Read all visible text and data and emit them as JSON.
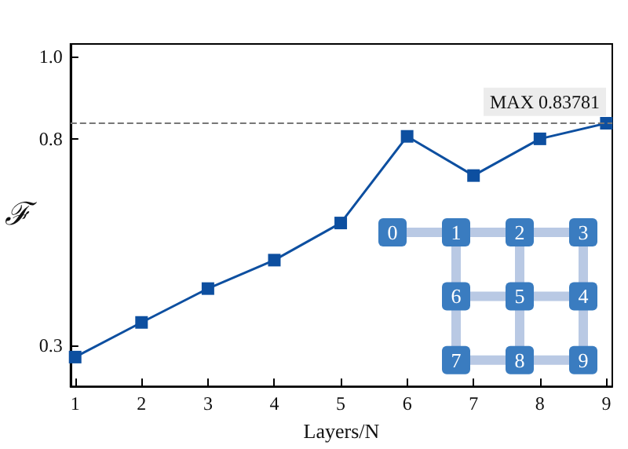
{
  "chart_data": {
    "type": "line",
    "xlabel": "Layers/N",
    "ylabel": "ℱ",
    "x": [
      1,
      2,
      3,
      4,
      5,
      6,
      7,
      8,
      9
    ],
    "series": [
      {
        "color": "#0d4fa0",
        "values": [
          0.271,
          0.355,
          0.437,
          0.506,
          0.596,
          0.806,
          0.711,
          0.8,
          0.83781
        ]
      }
    ],
    "xlim": [
      0.93,
      9.09
    ],
    "xticks": [
      1,
      2,
      3,
      4,
      5,
      6,
      7,
      8,
      9
    ],
    "ylim": [
      0.2,
      1.03
    ],
    "yticks": [
      0.3,
      0.8,
      {
        "value": 1,
        "label": "1.0"
      }
    ],
    "ref_lines": [
      {
        "axis": "y",
        "value": 0.83781,
        "label": "MAX 0.83781",
        "color": "#777777",
        "line_style": "dashed"
      }
    ],
    "annotations": [
      "0",
      "1",
      "2",
      "3",
      "6",
      "5",
      "4",
      "7",
      "8",
      "9"
    ],
    "marker": "square",
    "line_style": "solid",
    "grid": false
  }
}
